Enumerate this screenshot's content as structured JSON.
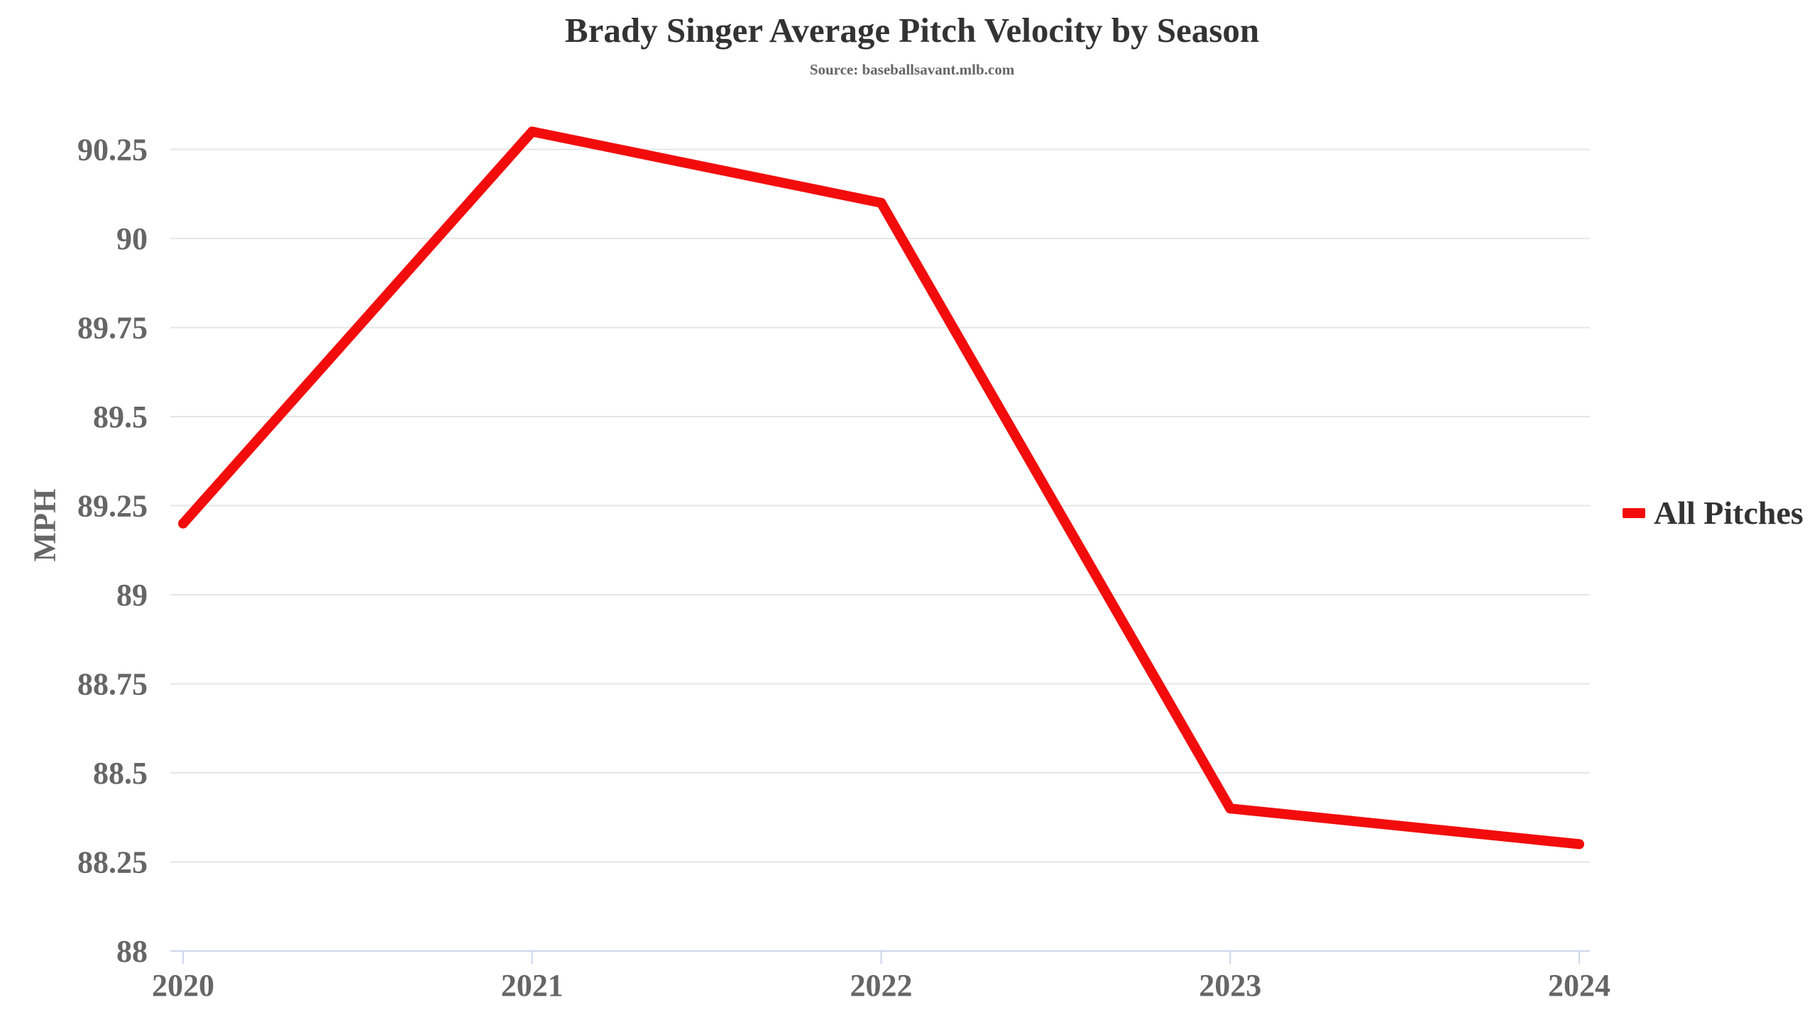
{
  "chart_data": {
    "type": "line",
    "title": "Brady Singer Average Pitch Velocity by Season",
    "subtitle": "Source: baseballsavant.mlb.com",
    "xlabel": "",
    "ylabel": "MPH",
    "categories": [
      "2020",
      "2021",
      "2022",
      "2023",
      "2024"
    ],
    "series": [
      {
        "name": "All Pitches",
        "values": [
          89.2,
          90.3,
          90.1,
          88.4,
          88.3
        ],
        "color": "#f20c0c"
      }
    ],
    "ylim": [
      88,
      90.25
    ],
    "yticks": [
      88,
      88.25,
      88.5,
      88.75,
      89,
      89.25,
      89.5,
      89.75,
      90,
      90.25
    ],
    "ytick_labels": [
      "88",
      "88.25",
      "88.5",
      "88.75",
      "89",
      "89.25",
      "89.5",
      "89.75",
      "90",
      "90.25"
    ],
    "grid": true,
    "legend_position": "right"
  }
}
